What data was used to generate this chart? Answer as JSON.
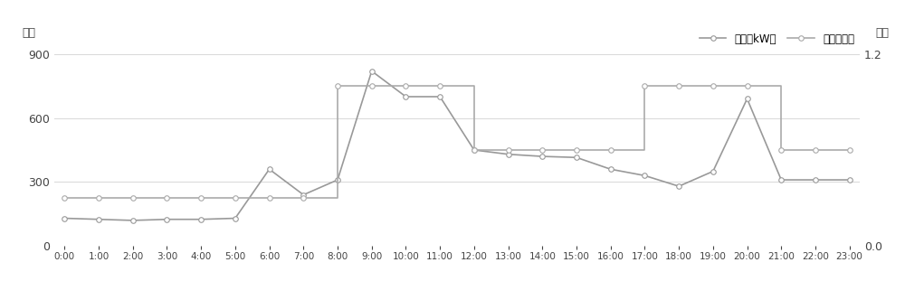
{
  "hours": [
    0,
    1,
    2,
    3,
    4,
    5,
    6,
    7,
    8,
    9,
    10,
    11,
    12,
    13,
    14,
    15,
    16,
    17,
    18,
    19,
    20,
    21,
    22,
    23
  ],
  "load": [
    130,
    125,
    120,
    125,
    125,
    130,
    360,
    240,
    310,
    820,
    700,
    700,
    450,
    430,
    420,
    415,
    360,
    330,
    280,
    350,
    690,
    310,
    310,
    310
  ],
  "price_hours": [
    0,
    1,
    2,
    3,
    4,
    5,
    6,
    7,
    8,
    9,
    10,
    11,
    12,
    13,
    14,
    15,
    16,
    17,
    18,
    19,
    20,
    21,
    22,
    23
  ],
  "price": [
    0.3,
    0.3,
    0.3,
    0.3,
    0.3,
    0.3,
    0.3,
    0.3,
    1.0,
    1.0,
    1.0,
    1.0,
    0.6,
    0.6,
    0.6,
    0.6,
    0.6,
    1.0,
    1.0,
    1.0,
    1.0,
    0.6,
    0.6,
    0.6
  ],
  "load_color": "#999999",
  "price_color": "#aaaaaa",
  "marker": "o",
  "marker_size": 4,
  "line_width": 1.2,
  "ylabel_left": "负荷",
  "ylabel_right": "电价",
  "ylim_left": [
    0,
    900
  ],
  "ylim_right": [
    0,
    1.2
  ],
  "yticks_left": [
    0,
    300,
    600,
    900
  ],
  "yticks_right": [
    0,
    1.2
  ],
  "legend_load": "负荷（kW）",
  "legend_price": "电价（元）",
  "bg_color": "#ffffff",
  "grid_color": "#d8d8d8",
  "tick_label_color": "#444444",
  "axis_label_color": "#444444"
}
